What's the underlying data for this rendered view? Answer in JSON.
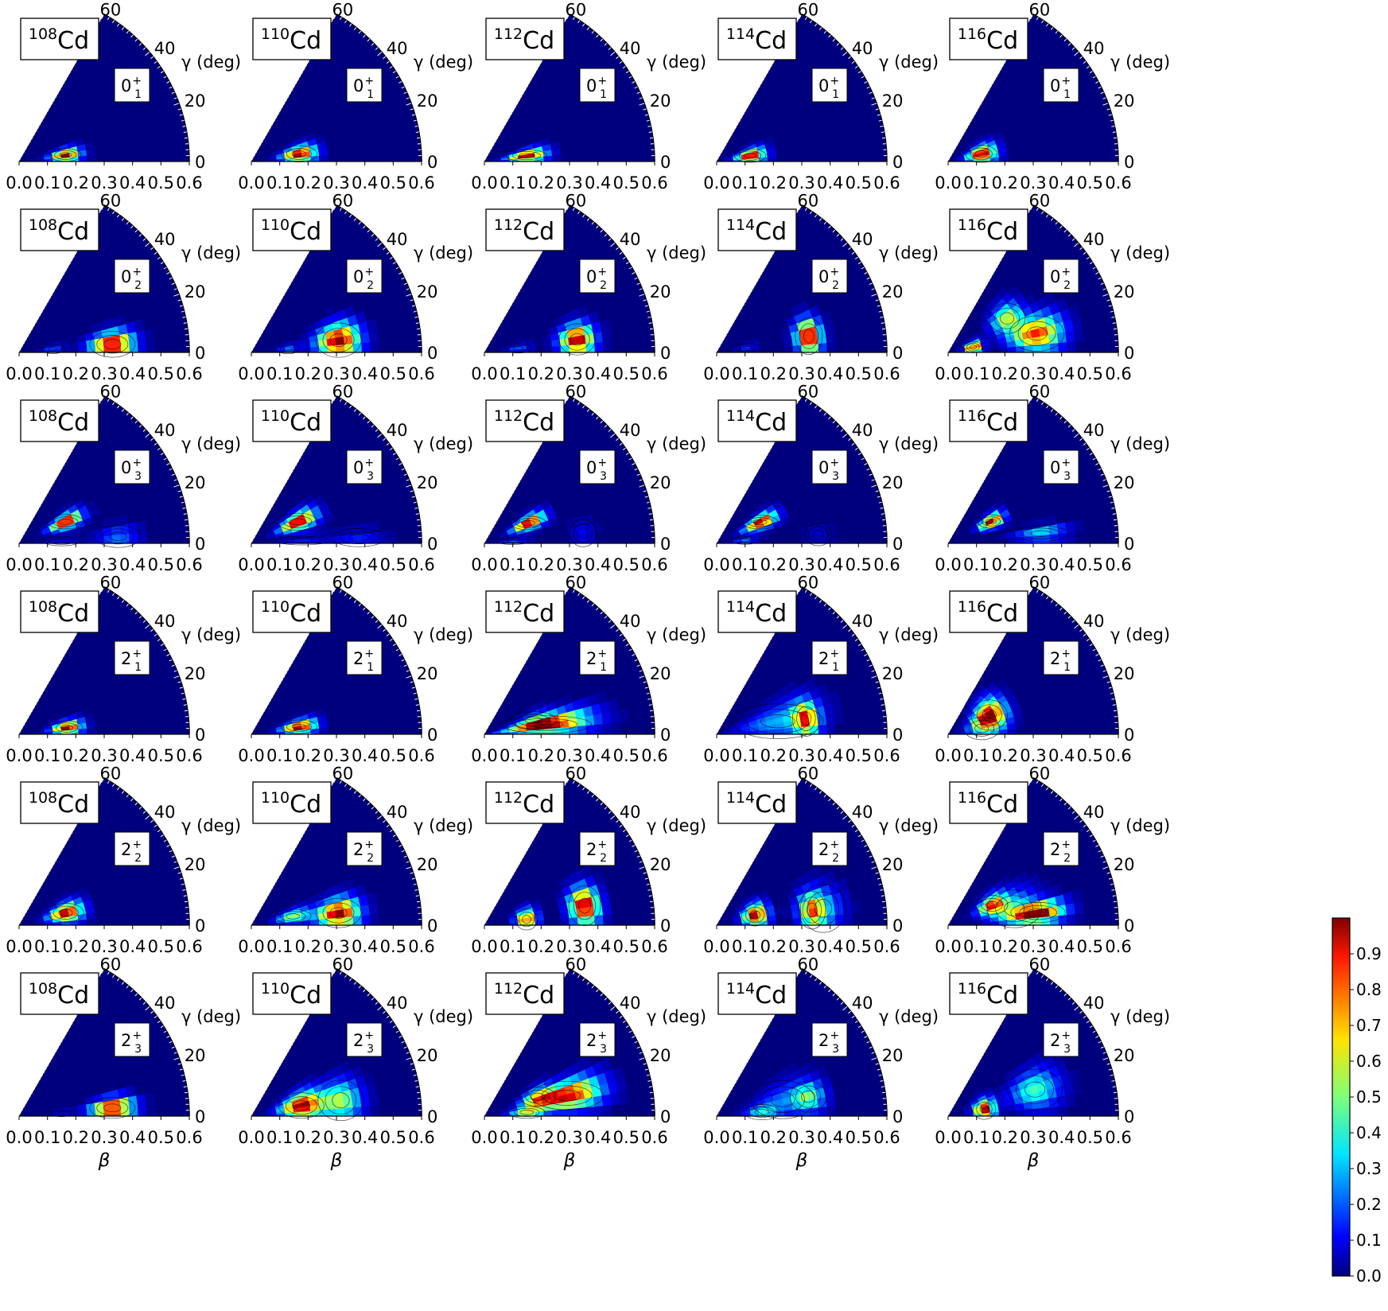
{
  "chart_data": {
    "type": "heatmap",
    "nuclei": [
      {
        "mass": "108",
        "element": "Cd"
      },
      {
        "mass": "110",
        "element": "Cd"
      },
      {
        "mass": "112",
        "element": "Cd"
      },
      {
        "mass": "114",
        "element": "Cd"
      },
      {
        "mass": "116",
        "element": "Cd"
      }
    ],
    "states": [
      {
        "j": "0",
        "sub": "1",
        "sup": "+"
      },
      {
        "j": "0",
        "sub": "2",
        "sup": "+"
      },
      {
        "j": "0",
        "sub": "3",
        "sup": "+"
      },
      {
        "j": "2",
        "sub": "1",
        "sup": "+"
      },
      {
        "j": "2",
        "sub": "2",
        "sup": "+"
      },
      {
        "j": "2",
        "sub": "3",
        "sup": "+"
      }
    ],
    "beta_ticks": [
      "0.0",
      "0.1",
      "0.2",
      "0.3",
      "0.4",
      "0.5",
      "0.6"
    ],
    "beta_range": [
      0,
      0.6
    ],
    "gamma_ticks": [
      "0",
      "20",
      "40",
      "60"
    ],
    "gamma_range": [
      0,
      60
    ],
    "xlabel": "β",
    "gamma_label": "γ (deg)",
    "colorbar": {
      "ticks": [
        "0.0",
        "0.1",
        "0.2",
        "0.3",
        "0.4",
        "0.5",
        "0.6",
        "0.7",
        "0.8",
        "0.9"
      ],
      "range": [
        0,
        1
      ],
      "colormap": "jet"
    },
    "panels_note_peaks": "each panel lists Gaussian peaks of the collective wave function density as [beta, gamma_deg, amplitude, sigma_beta, sigma_gamma_deg]",
    "panels": [
      [
        [
          [
            0.165,
            8,
            1.0,
            0.035,
            5
          ]
        ],
        [
          [
            0.33,
            5,
            1.0,
            0.05,
            5
          ],
          [
            0.12,
            6,
            0.22,
            0.025,
            5
          ]
        ],
        [
          [
            0.18,
            25,
            1.0,
            0.04,
            5
          ],
          [
            0.35,
            4,
            0.25,
            0.05,
            4
          ],
          [
            0.15,
            3,
            0.12,
            0.04,
            4
          ]
        ],
        [
          [
            0.17,
            8,
            1.0,
            0.035,
            5
          ]
        ],
        [
          [
            0.17,
            15,
            1.0,
            0.04,
            7
          ]
        ],
        [
          [
            0.33,
            5,
            1.0,
            0.05,
            4
          ],
          [
            0.15,
            4,
            0.15,
            0.02,
            3
          ]
        ]
      ],
      [
        [
          [
            0.17,
            9,
            1.0,
            0.04,
            6
          ]
        ],
        [
          [
            0.31,
            8,
            1.0,
            0.05,
            7
          ],
          [
            0.13,
            6,
            0.25,
            0.025,
            5
          ]
        ],
        [
          [
            0.18,
            25,
            1.0,
            0.045,
            6
          ],
          [
            0.18,
            3,
            0.15,
            0.06,
            3
          ],
          [
            0.38,
            3,
            0.15,
            0.06,
            3
          ]
        ],
        [
          [
            0.17,
            9,
            1.0,
            0.04,
            5
          ]
        ],
        [
          [
            0.31,
            8,
            1.0,
            0.05,
            6
          ],
          [
            0.15,
            12,
            0.55,
            0.04,
            6
          ]
        ],
        [
          [
            0.18,
            12,
            1.0,
            0.05,
            9
          ],
          [
            0.32,
            10,
            0.55,
            0.05,
            8
          ]
        ]
      ],
      [
        [
          [
            0.15,
            8,
            1.0,
            0.045,
            5
          ]
        ],
        [
          [
            0.33,
            8,
            1.0,
            0.04,
            6
          ],
          [
            0.12,
            7,
            0.22,
            0.03,
            5
          ]
        ],
        [
          [
            0.17,
            25,
            1.0,
            0.04,
            5
          ],
          [
            0.1,
            4,
            0.22,
            0.035,
            4
          ],
          [
            0.35,
            6,
            0.12,
            0.03,
            5
          ]
        ],
        [
          [
            0.22,
            9,
            1.0,
            0.1,
            5
          ],
          [
            0.18,
            16,
            0.3,
            0.05,
            6
          ]
        ],
        [
          [
            0.36,
            11,
            1.0,
            0.035,
            7
          ],
          [
            0.15,
            8,
            0.85,
            0.025,
            9
          ]
        ],
        [
          [
            0.3,
            14,
            0.95,
            0.08,
            6
          ],
          [
            0.2,
            20,
            0.55,
            0.04,
            6
          ],
          [
            0.15,
            5,
            0.6,
            0.04,
            5
          ]
        ]
      ],
      [
        [
          [
            0.12,
            10,
            1.0,
            0.035,
            7
          ]
        ],
        [
          [
            0.33,
            10,
            1.0,
            0.03,
            7
          ],
          [
            0.11,
            9,
            0.18,
            0.025,
            5
          ]
        ],
        [
          [
            0.17,
            26,
            1.0,
            0.04,
            5
          ],
          [
            0.1,
            6,
            0.25,
            0.03,
            5
          ],
          [
            0.36,
            5,
            0.08,
            0.03,
            4
          ]
        ],
        [
          [
            0.32,
            10,
            0.75,
            0.03,
            7
          ],
          [
            0.22,
            12,
            0.3,
            0.1,
            10
          ]
        ],
        [
          [
            0.14,
            15,
            1.0,
            0.03,
            10
          ],
          [
            0.34,
            9,
            0.62,
            0.03,
            7
          ],
          [
            0.38,
            9,
            0.3,
            0.05,
            8
          ]
        ],
        [
          [
            0.33,
            12,
            0.45,
            0.04,
            6
          ],
          [
            0.16,
            5,
            0.35,
            0.04,
            6
          ],
          [
            0.24,
            14,
            0.2,
            0.07,
            10
          ]
        ]
      ],
      [
        [
          [
            0.12,
            13,
            1.0,
            0.035,
            9
          ]
        ],
        [
          [
            0.09,
            12,
            1.0,
            0.02,
            8
          ],
          [
            0.32,
            12,
            0.85,
            0.06,
            7
          ],
          [
            0.24,
            30,
            0.6,
            0.04,
            8
          ]
        ],
        [
          [
            0.17,
            27,
            1.0,
            0.03,
            5
          ],
          [
            0.33,
            6,
            0.38,
            0.06,
            3
          ]
        ],
        [
          [
            0.16,
            25,
            1.0,
            0.04,
            12
          ],
          [
            0.12,
            10,
            0.3,
            0.04,
            12
          ]
        ],
        [
          [
            0.32,
            8,
            1.0,
            0.06,
            4
          ],
          [
            0.17,
            25,
            0.8,
            0.035,
            7
          ],
          [
            0.24,
            14,
            0.4,
            0.06,
            10
          ]
        ],
        [
          [
            0.13,
            11,
            1.0,
            0.025,
            10
          ],
          [
            0.32,
            17,
            0.45,
            0.06,
            8
          ]
        ]
      ]
    ]
  }
}
